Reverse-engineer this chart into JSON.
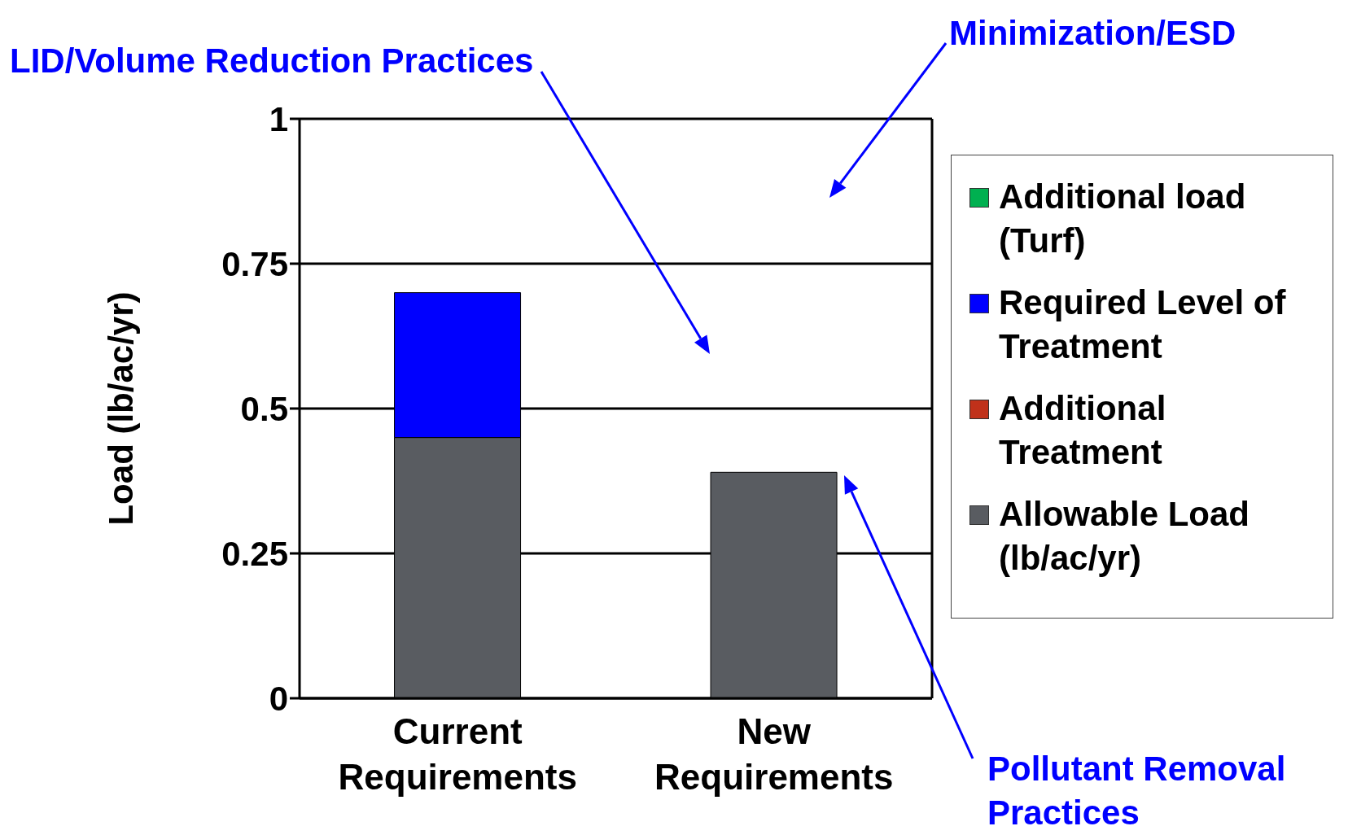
{
  "chart_data": {
    "type": "bar",
    "stacked": true,
    "ylabel": "Load (lb/ac/yr)",
    "categories": [
      "Current Requirements",
      "New Requirements"
    ],
    "series": [
      {
        "name": "Allowable Load (lb/ac/yr)",
        "color": "#595c61",
        "values": [
          0.45,
          0.39
        ]
      },
      {
        "name": "Additional Treatment",
        "color": "#c0311a",
        "values": [
          null,
          null
        ]
      },
      {
        "name": "Required Level of Treatment",
        "color": "#0000ff",
        "values": [
          0.25,
          null
        ]
      },
      {
        "name": "Additional load (Turf)",
        "color": "#00b050",
        "values": [
          null,
          null
        ]
      }
    ],
    "ylim": [
      0,
      1
    ],
    "yticks": [
      0,
      0.25,
      0.5,
      0.75,
      1
    ],
    "grid": "y",
    "legend": "right",
    "annotations": [
      "LID/Volume Reduction Practices",
      "Minimization/ESD",
      "Pollutant Removal Practices"
    ]
  }
}
